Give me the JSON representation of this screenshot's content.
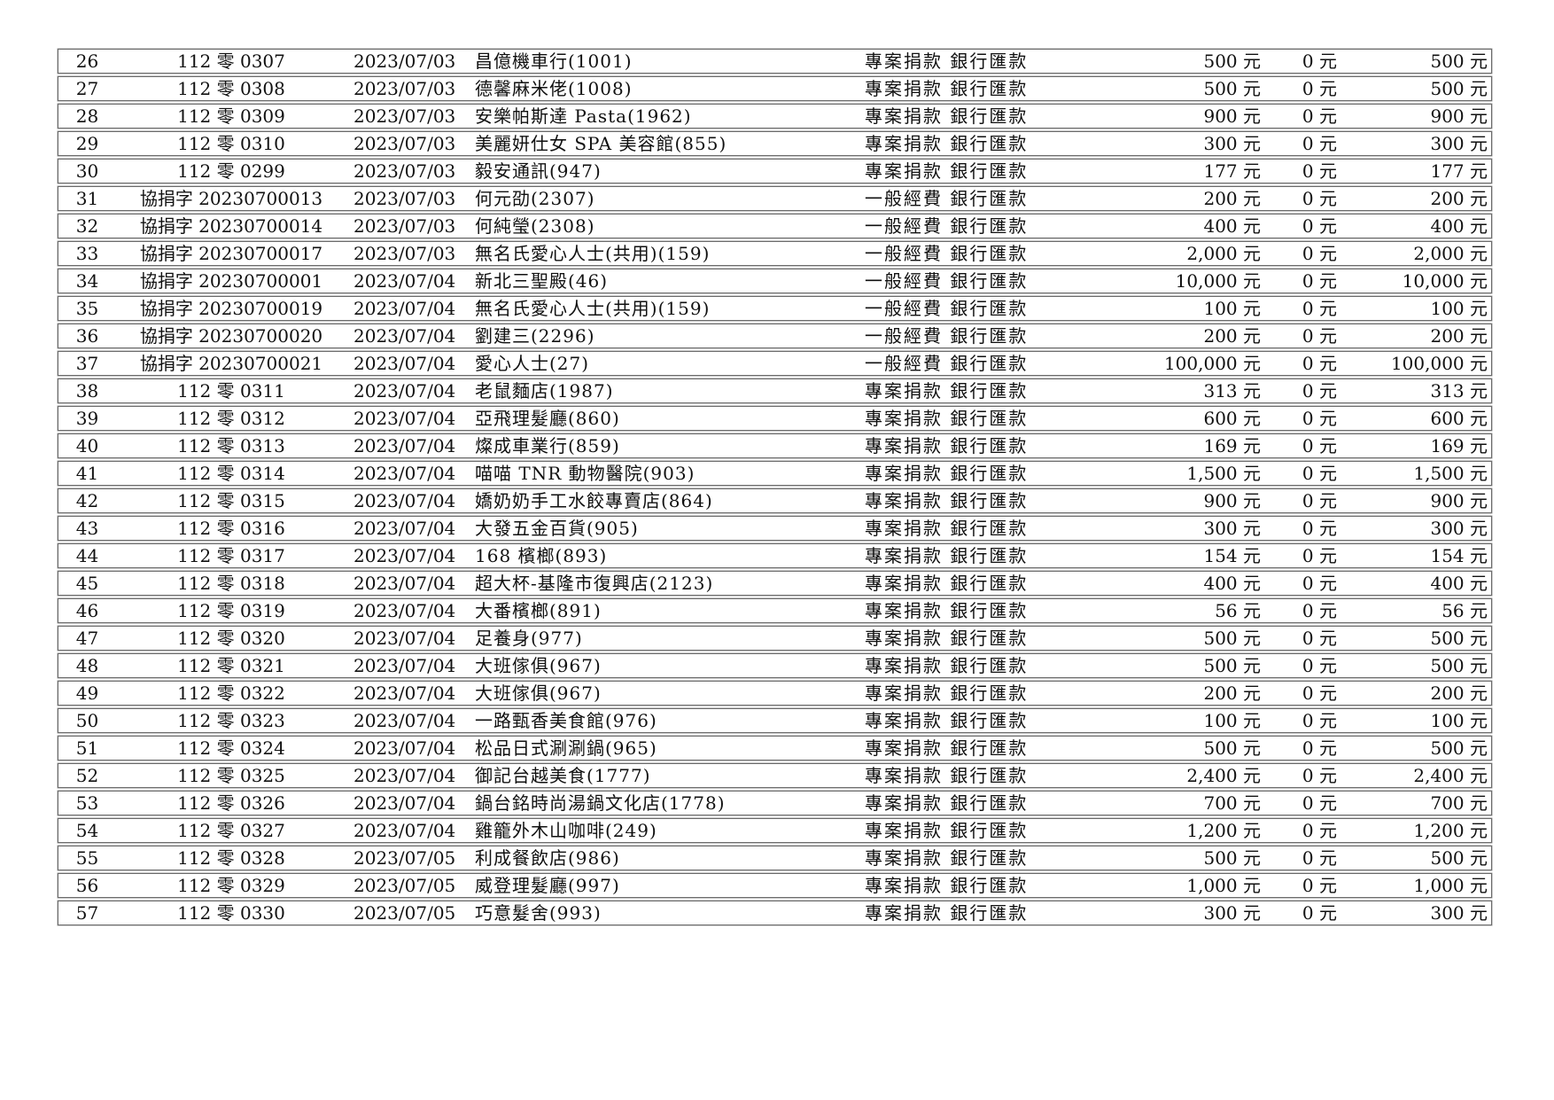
{
  "colors": {
    "background": "#ffffff",
    "border": "#6b6b6b",
    "ink": "#101010"
  },
  "table": {
    "rows": [
      {
        "no": "26",
        "receipt": "112 零 0307",
        "date": "2023/07/03",
        "name": "昌億機車行(1001)",
        "type": "專案捐款 銀行匯款",
        "amt1": "500 元",
        "amt2": "0 元",
        "amt3": "500 元"
      },
      {
        "no": "27",
        "receipt": "112 零 0308",
        "date": "2023/07/03",
        "name": "德馨麻米佬(1008)",
        "type": "專案捐款 銀行匯款",
        "amt1": "500 元",
        "amt2": "0 元",
        "amt3": "500 元"
      },
      {
        "no": "28",
        "receipt": "112 零 0309",
        "date": "2023/07/03",
        "name": "安樂帕斯達 Pasta(1962)",
        "type": "專案捐款 銀行匯款",
        "amt1": "900 元",
        "amt2": "0 元",
        "amt3": "900 元"
      },
      {
        "no": "29",
        "receipt": "112 零 0310",
        "date": "2023/07/03",
        "name": "美麗妍仕女 SPA 美容館(855)",
        "type": "專案捐款 銀行匯款",
        "amt1": "300 元",
        "amt2": "0 元",
        "amt3": "300 元"
      },
      {
        "no": "30",
        "receipt": "112 零 0299",
        "date": "2023/07/03",
        "name": "毅安通訊(947)",
        "type": "專案捐款 銀行匯款",
        "amt1": "177 元",
        "amt2": "0 元",
        "amt3": "177 元"
      },
      {
        "no": "31",
        "receipt": "協捐字 20230700013",
        "date": "2023/07/03",
        "name": "何元劭(2307)",
        "type": "一般經費 銀行匯款",
        "amt1": "200 元",
        "amt2": "0 元",
        "amt3": "200 元"
      },
      {
        "no": "32",
        "receipt": "協捐字 20230700014",
        "date": "2023/07/03",
        "name": "何純瑩(2308)",
        "type": "一般經費 銀行匯款",
        "amt1": "400 元",
        "amt2": "0 元",
        "amt3": "400 元"
      },
      {
        "no": "33",
        "receipt": "協捐字 20230700017",
        "date": "2023/07/03",
        "name": "無名氏愛心人士(共用)(159)",
        "type": "一般經費 銀行匯款",
        "amt1": "2,000 元",
        "amt2": "0 元",
        "amt3": "2,000 元"
      },
      {
        "no": "34",
        "receipt": "協捐字 20230700001",
        "date": "2023/07/04",
        "name": "新北三聖殿(46)",
        "type": "一般經費 銀行匯款",
        "amt1": "10,000 元",
        "amt2": "0 元",
        "amt3": "10,000 元"
      },
      {
        "no": "35",
        "receipt": "協捐字 20230700019",
        "date": "2023/07/04",
        "name": "無名氏愛心人士(共用)(159)",
        "type": "一般經費 銀行匯款",
        "amt1": "100 元",
        "amt2": "0 元",
        "amt3": "100 元"
      },
      {
        "no": "36",
        "receipt": "協捐字 20230700020",
        "date": "2023/07/04",
        "name": "劉建三(2296)",
        "type": "一般經費 銀行匯款",
        "amt1": "200 元",
        "amt2": "0 元",
        "amt3": "200 元"
      },
      {
        "no": "37",
        "receipt": "協捐字 20230700021",
        "date": "2023/07/04",
        "name": "愛心人士(27)",
        "type": "一般經費 銀行匯款",
        "amt1": "100,000 元",
        "amt2": "0 元",
        "amt3": "100,000 元"
      },
      {
        "no": "38",
        "receipt": "112 零 0311",
        "date": "2023/07/04",
        "name": "老鼠麵店(1987)",
        "type": "專案捐款 銀行匯款",
        "amt1": "313 元",
        "amt2": "0 元",
        "amt3": "313 元"
      },
      {
        "no": "39",
        "receipt": "112 零 0312",
        "date": "2023/07/04",
        "name": "亞飛理髮廳(860)",
        "type": "專案捐款 銀行匯款",
        "amt1": "600 元",
        "amt2": "0 元",
        "amt3": "600 元"
      },
      {
        "no": "40",
        "receipt": "112 零 0313",
        "date": "2023/07/04",
        "name": "燦成車業行(859)",
        "type": "專案捐款 銀行匯款",
        "amt1": "169 元",
        "amt2": "0 元",
        "amt3": "169 元"
      },
      {
        "no": "41",
        "receipt": "112 零 0314",
        "date": "2023/07/04",
        "name": "喵喵 TNR 動物醫院(903)",
        "type": "專案捐款 銀行匯款",
        "amt1": "1,500 元",
        "amt2": "0 元",
        "amt3": "1,500 元"
      },
      {
        "no": "42",
        "receipt": "112 零 0315",
        "date": "2023/07/04",
        "name": "嬌奶奶手工水餃專賣店(864)",
        "type": "專案捐款 銀行匯款",
        "amt1": "900 元",
        "amt2": "0 元",
        "amt3": "900 元"
      },
      {
        "no": "43",
        "receipt": "112 零 0316",
        "date": "2023/07/04",
        "name": "大發五金百貨(905)",
        "type": "專案捐款 銀行匯款",
        "amt1": "300 元",
        "amt2": "0 元",
        "amt3": "300 元"
      },
      {
        "no": "44",
        "receipt": "112 零 0317",
        "date": "2023/07/04",
        "name": "168 檳榔(893)",
        "type": "專案捐款 銀行匯款",
        "amt1": "154 元",
        "amt2": "0 元",
        "amt3": "154 元"
      },
      {
        "no": "45",
        "receipt": "112 零 0318",
        "date": "2023/07/04",
        "name": "超大杯-基隆市復興店(2123)",
        "type": "專案捐款 銀行匯款",
        "amt1": "400 元",
        "amt2": "0 元",
        "amt3": "400 元"
      },
      {
        "no": "46",
        "receipt": "112 零 0319",
        "date": "2023/07/04",
        "name": "大番檳榔(891)",
        "type": "專案捐款 銀行匯款",
        "amt1": "56 元",
        "amt2": "0 元",
        "amt3": "56 元"
      },
      {
        "no": "47",
        "receipt": "112 零 0320",
        "date": "2023/07/04",
        "name": "足養身(977)",
        "type": "專案捐款 銀行匯款",
        "amt1": "500 元",
        "amt2": "0 元",
        "amt3": "500 元"
      },
      {
        "no": "48",
        "receipt": "112 零 0321",
        "date": "2023/07/04",
        "name": "大班傢俱(967)",
        "type": "專案捐款 銀行匯款",
        "amt1": "500 元",
        "amt2": "0 元",
        "amt3": "500 元"
      },
      {
        "no": "49",
        "receipt": "112 零 0322",
        "date": "2023/07/04",
        "name": "大班傢俱(967)",
        "type": "專案捐款 銀行匯款",
        "amt1": "200 元",
        "amt2": "0 元",
        "amt3": "200 元"
      },
      {
        "no": "50",
        "receipt": "112 零 0323",
        "date": "2023/07/04",
        "name": "一路甄香美食館(976)",
        "type": "專案捐款 銀行匯款",
        "amt1": "100 元",
        "amt2": "0 元",
        "amt3": "100 元"
      },
      {
        "no": "51",
        "receipt": "112 零 0324",
        "date": "2023/07/04",
        "name": "松品日式涮涮鍋(965)",
        "type": "專案捐款 銀行匯款",
        "amt1": "500 元",
        "amt2": "0 元",
        "amt3": "500 元"
      },
      {
        "no": "52",
        "receipt": "112 零 0325",
        "date": "2023/07/04",
        "name": "御記台越美食(1777)",
        "type": "專案捐款 銀行匯款",
        "amt1": "2,400 元",
        "amt2": "0 元",
        "amt3": "2,400 元"
      },
      {
        "no": "53",
        "receipt": "112 零 0326",
        "date": "2023/07/04",
        "name": "鍋台銘時尚湯鍋文化店(1778)",
        "type": "專案捐款 銀行匯款",
        "amt1": "700 元",
        "amt2": "0 元",
        "amt3": "700 元"
      },
      {
        "no": "54",
        "receipt": "112 零 0327",
        "date": "2023/07/04",
        "name": "雞籠外木山咖啡(249)",
        "type": "專案捐款 銀行匯款",
        "amt1": "1,200 元",
        "amt2": "0 元",
        "amt3": "1,200 元"
      },
      {
        "no": "55",
        "receipt": "112 零 0328",
        "date": "2023/07/05",
        "name": "利成餐飲店(986)",
        "type": "專案捐款 銀行匯款",
        "amt1": "500 元",
        "amt2": "0 元",
        "amt3": "500 元"
      },
      {
        "no": "56",
        "receipt": "112 零 0329",
        "date": "2023/07/05",
        "name": "威登理髮廳(997)",
        "type": "專案捐款 銀行匯款",
        "amt1": "1,000 元",
        "amt2": "0 元",
        "amt3": "1,000 元"
      },
      {
        "no": "57",
        "receipt": "112 零 0330",
        "date": "2023/07/05",
        "name": "巧意髮舍(993)",
        "type": "專案捐款 銀行匯款",
        "amt1": "300 元",
        "amt2": "0 元",
        "amt3": "300 元"
      }
    ]
  }
}
